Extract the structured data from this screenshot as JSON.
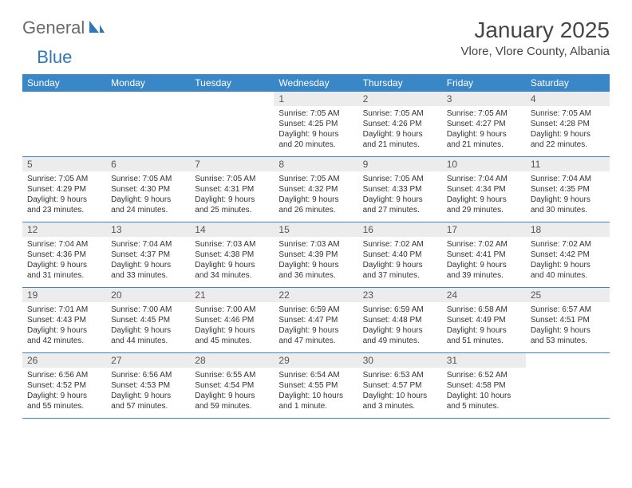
{
  "logo": {
    "general": "General",
    "blue": "Blue"
  },
  "title": "January 2025",
  "location": "Vlore, Vlore County, Albania",
  "colors": {
    "header_bar": "#3a87c8",
    "header_text": "#ffffff",
    "daynum_bg": "#ececec",
    "daynum_text": "#555555",
    "body_text": "#333333",
    "rule": "#3a87c8",
    "logo_gray": "#6a6a6a",
    "logo_blue": "#2e77b8",
    "page_bg": "#ffffff"
  },
  "weekdays": [
    "Sunday",
    "Monday",
    "Tuesday",
    "Wednesday",
    "Thursday",
    "Friday",
    "Saturday"
  ],
  "weeks": [
    [
      null,
      null,
      null,
      {
        "n": "1",
        "sr": "Sunrise: 7:05 AM",
        "ss": "Sunset: 4:25 PM",
        "d1": "Daylight: 9 hours",
        "d2": "and 20 minutes."
      },
      {
        "n": "2",
        "sr": "Sunrise: 7:05 AM",
        "ss": "Sunset: 4:26 PM",
        "d1": "Daylight: 9 hours",
        "d2": "and 21 minutes."
      },
      {
        "n": "3",
        "sr": "Sunrise: 7:05 AM",
        "ss": "Sunset: 4:27 PM",
        "d1": "Daylight: 9 hours",
        "d2": "and 21 minutes."
      },
      {
        "n": "4",
        "sr": "Sunrise: 7:05 AM",
        "ss": "Sunset: 4:28 PM",
        "d1": "Daylight: 9 hours",
        "d2": "and 22 minutes."
      }
    ],
    [
      {
        "n": "5",
        "sr": "Sunrise: 7:05 AM",
        "ss": "Sunset: 4:29 PM",
        "d1": "Daylight: 9 hours",
        "d2": "and 23 minutes."
      },
      {
        "n": "6",
        "sr": "Sunrise: 7:05 AM",
        "ss": "Sunset: 4:30 PM",
        "d1": "Daylight: 9 hours",
        "d2": "and 24 minutes."
      },
      {
        "n": "7",
        "sr": "Sunrise: 7:05 AM",
        "ss": "Sunset: 4:31 PM",
        "d1": "Daylight: 9 hours",
        "d2": "and 25 minutes."
      },
      {
        "n": "8",
        "sr": "Sunrise: 7:05 AM",
        "ss": "Sunset: 4:32 PM",
        "d1": "Daylight: 9 hours",
        "d2": "and 26 minutes."
      },
      {
        "n": "9",
        "sr": "Sunrise: 7:05 AM",
        "ss": "Sunset: 4:33 PM",
        "d1": "Daylight: 9 hours",
        "d2": "and 27 minutes."
      },
      {
        "n": "10",
        "sr": "Sunrise: 7:04 AM",
        "ss": "Sunset: 4:34 PM",
        "d1": "Daylight: 9 hours",
        "d2": "and 29 minutes."
      },
      {
        "n": "11",
        "sr": "Sunrise: 7:04 AM",
        "ss": "Sunset: 4:35 PM",
        "d1": "Daylight: 9 hours",
        "d2": "and 30 minutes."
      }
    ],
    [
      {
        "n": "12",
        "sr": "Sunrise: 7:04 AM",
        "ss": "Sunset: 4:36 PM",
        "d1": "Daylight: 9 hours",
        "d2": "and 31 minutes."
      },
      {
        "n": "13",
        "sr": "Sunrise: 7:04 AM",
        "ss": "Sunset: 4:37 PM",
        "d1": "Daylight: 9 hours",
        "d2": "and 33 minutes."
      },
      {
        "n": "14",
        "sr": "Sunrise: 7:03 AM",
        "ss": "Sunset: 4:38 PM",
        "d1": "Daylight: 9 hours",
        "d2": "and 34 minutes."
      },
      {
        "n": "15",
        "sr": "Sunrise: 7:03 AM",
        "ss": "Sunset: 4:39 PM",
        "d1": "Daylight: 9 hours",
        "d2": "and 36 minutes."
      },
      {
        "n": "16",
        "sr": "Sunrise: 7:02 AM",
        "ss": "Sunset: 4:40 PM",
        "d1": "Daylight: 9 hours",
        "d2": "and 37 minutes."
      },
      {
        "n": "17",
        "sr": "Sunrise: 7:02 AM",
        "ss": "Sunset: 4:41 PM",
        "d1": "Daylight: 9 hours",
        "d2": "and 39 minutes."
      },
      {
        "n": "18",
        "sr": "Sunrise: 7:02 AM",
        "ss": "Sunset: 4:42 PM",
        "d1": "Daylight: 9 hours",
        "d2": "and 40 minutes."
      }
    ],
    [
      {
        "n": "19",
        "sr": "Sunrise: 7:01 AM",
        "ss": "Sunset: 4:43 PM",
        "d1": "Daylight: 9 hours",
        "d2": "and 42 minutes."
      },
      {
        "n": "20",
        "sr": "Sunrise: 7:00 AM",
        "ss": "Sunset: 4:45 PM",
        "d1": "Daylight: 9 hours",
        "d2": "and 44 minutes."
      },
      {
        "n": "21",
        "sr": "Sunrise: 7:00 AM",
        "ss": "Sunset: 4:46 PM",
        "d1": "Daylight: 9 hours",
        "d2": "and 45 minutes."
      },
      {
        "n": "22",
        "sr": "Sunrise: 6:59 AM",
        "ss": "Sunset: 4:47 PM",
        "d1": "Daylight: 9 hours",
        "d2": "and 47 minutes."
      },
      {
        "n": "23",
        "sr": "Sunrise: 6:59 AM",
        "ss": "Sunset: 4:48 PM",
        "d1": "Daylight: 9 hours",
        "d2": "and 49 minutes."
      },
      {
        "n": "24",
        "sr": "Sunrise: 6:58 AM",
        "ss": "Sunset: 4:49 PM",
        "d1": "Daylight: 9 hours",
        "d2": "and 51 minutes."
      },
      {
        "n": "25",
        "sr": "Sunrise: 6:57 AM",
        "ss": "Sunset: 4:51 PM",
        "d1": "Daylight: 9 hours",
        "d2": "and 53 minutes."
      }
    ],
    [
      {
        "n": "26",
        "sr": "Sunrise: 6:56 AM",
        "ss": "Sunset: 4:52 PM",
        "d1": "Daylight: 9 hours",
        "d2": "and 55 minutes."
      },
      {
        "n": "27",
        "sr": "Sunrise: 6:56 AM",
        "ss": "Sunset: 4:53 PM",
        "d1": "Daylight: 9 hours",
        "d2": "and 57 minutes."
      },
      {
        "n": "28",
        "sr": "Sunrise: 6:55 AM",
        "ss": "Sunset: 4:54 PM",
        "d1": "Daylight: 9 hours",
        "d2": "and 59 minutes."
      },
      {
        "n": "29",
        "sr": "Sunrise: 6:54 AM",
        "ss": "Sunset: 4:55 PM",
        "d1": "Daylight: 10 hours",
        "d2": "and 1 minute."
      },
      {
        "n": "30",
        "sr": "Sunrise: 6:53 AM",
        "ss": "Sunset: 4:57 PM",
        "d1": "Daylight: 10 hours",
        "d2": "and 3 minutes."
      },
      {
        "n": "31",
        "sr": "Sunrise: 6:52 AM",
        "ss": "Sunset: 4:58 PM",
        "d1": "Daylight: 10 hours",
        "d2": "and 5 minutes."
      },
      null
    ]
  ]
}
